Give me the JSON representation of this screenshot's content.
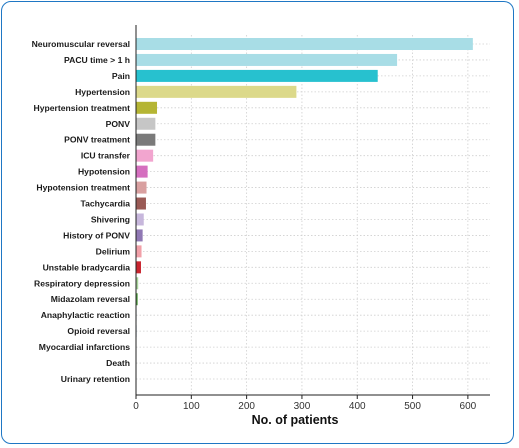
{
  "chart_data": {
    "type": "bar",
    "orientation": "horizontal",
    "title": "",
    "xlabel": "No. of patients",
    "ylabel": "",
    "xlim": [
      0,
      640
    ],
    "xticks": [
      0,
      100,
      200,
      300,
      400,
      500,
      600
    ],
    "grid": "dotted",
    "categories": [
      "Neuromuscular reversal",
      "PACU time > 1 h",
      "Pain",
      "Hypertension",
      "Hypertension treatment",
      "PONV",
      "PONV treatment",
      "ICU transfer",
      "Hypotension",
      "Hypotension treatment",
      "Tachycardia",
      "Shivering",
      "History of PONV",
      "Delirium",
      "Unstable bradycardia",
      "Respiratory depression",
      "Midazolam reversal",
      "Anaphylactic reaction",
      "Opioid reversal",
      "Myocardial infarctions",
      "Death",
      "Urinary retention"
    ],
    "values": [
      609,
      472,
      437,
      290,
      38,
      35,
      35,
      31,
      21,
      19,
      18,
      14,
      12,
      10,
      9,
      4,
      3,
      1,
      1,
      0,
      0,
      0
    ],
    "colors": [
      "#a8dde6",
      "#a8dde6",
      "#27c1cf",
      "#dcd98a",
      "#b5b534",
      "#c6c6c6",
      "#7a7a7a",
      "#f2a5cf",
      "#d56fbf",
      "#d9a0a0",
      "#9a5a55",
      "#c7b7dc",
      "#9078b4",
      "#f1a0a8",
      "#c9252f",
      "#a8d49b",
      "#4f9d3f",
      "#9bbdd9",
      "#2b6ca8",
      "#f3c08e",
      "#e07b22",
      "#bbbbbb"
    ]
  }
}
